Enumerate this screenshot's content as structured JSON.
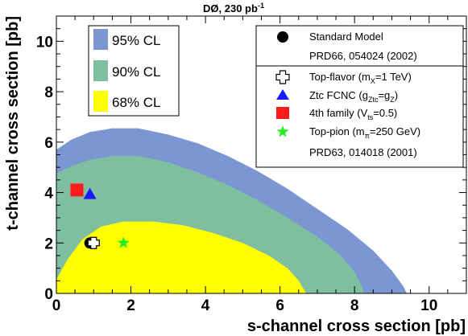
{
  "chart_data": {
    "type": "area",
    "title_main": "DØ, 230 pb",
    "title_sup": "-1",
    "xlabel": "s-channel cross section [pb]",
    "ylabel": "t-channel cross section [pb]",
    "xlim": [
      0,
      11
    ],
    "ylim": [
      0,
      11
    ],
    "xticks": [
      "0",
      "2",
      "4",
      "6",
      "8",
      "10"
    ],
    "yticks": [
      "0",
      "2",
      "4",
      "6",
      "8",
      "10"
    ],
    "colors": {
      "cl95": "#7b96d0",
      "cl90": "#7fbfa0",
      "cl68": "#ffff00",
      "sm": "#000000",
      "topflavor": "#ffffff",
      "ztc": "#1a1aff",
      "fourth": "#ff1a1a",
      "toppion": "#22ee22"
    },
    "regions": [
      {
        "name": "95% CL",
        "key": "cl95",
        "points": [
          [
            0,
            0
          ],
          [
            0,
            5.7
          ],
          [
            0.4,
            6.1
          ],
          [
            0.9,
            6.4
          ],
          [
            1.5,
            6.55
          ],
          [
            2.2,
            6.55
          ],
          [
            3.0,
            6.3
          ],
          [
            3.8,
            5.95
          ],
          [
            4.6,
            5.45
          ],
          [
            5.4,
            4.85
          ],
          [
            6.2,
            4.15
          ],
          [
            7.0,
            3.35
          ],
          [
            7.8,
            2.55
          ],
          [
            8.5,
            1.7
          ],
          [
            9.0,
            0.9
          ],
          [
            9.3,
            0.3
          ],
          [
            9.4,
            0
          ]
        ]
      },
      {
        "name": "90% CL",
        "key": "cl90",
        "points": [
          [
            0,
            0
          ],
          [
            0,
            4.75
          ],
          [
            0.4,
            5.05
          ],
          [
            0.9,
            5.3
          ],
          [
            1.5,
            5.45
          ],
          [
            2.2,
            5.45
          ],
          [
            3.0,
            5.2
          ],
          [
            3.8,
            4.8
          ],
          [
            4.6,
            4.3
          ],
          [
            5.4,
            3.7
          ],
          [
            6.2,
            3.0
          ],
          [
            7.0,
            2.25
          ],
          [
            7.6,
            1.55
          ],
          [
            8.0,
            0.85
          ],
          [
            8.2,
            0.3
          ],
          [
            8.25,
            0
          ]
        ]
      },
      {
        "name": "68% CL",
        "key": "cl68",
        "points": [
          [
            0,
            0
          ],
          [
            0,
            0.55
          ],
          [
            0.3,
            1.35
          ],
          [
            0.7,
            2.15
          ],
          [
            1.2,
            2.65
          ],
          [
            1.8,
            2.85
          ],
          [
            2.6,
            2.85
          ],
          [
            3.4,
            2.7
          ],
          [
            4.2,
            2.4
          ],
          [
            5.0,
            2.0
          ],
          [
            5.7,
            1.5
          ],
          [
            6.2,
            1.0
          ],
          [
            6.5,
            0.5
          ],
          [
            6.7,
            0
          ]
        ]
      }
    ],
    "markers": [
      {
        "name": "Standard Model",
        "shape": "circle",
        "key": "sm",
        "x": 0.9,
        "y": 2.0
      },
      {
        "name": "Top-flavor",
        "shape": "cross",
        "key": "topflavor",
        "x": 1.0,
        "y": 2.0
      },
      {
        "name": "Ztc FCNC",
        "shape": "triangle",
        "key": "ztc",
        "x": 0.9,
        "y": 3.9
      },
      {
        "name": "4th family",
        "shape": "square",
        "key": "fourth",
        "x": 0.55,
        "y": 4.1
      },
      {
        "name": "Top-pion",
        "shape": "star",
        "key": "toppion",
        "x": 1.8,
        "y": 2.0
      }
    ],
    "legend_cl": [
      "95% CL",
      "90% CL",
      "68% CL"
    ],
    "legend_models": {
      "sm": "Standard Model",
      "sm_ref": "PRD66, 054024 (2002)",
      "topflavor": "Top-flavor  (m",
      "topflavor_sub": "X",
      "topflavor_tail": "=1 TeV)",
      "ztc": "Ztc FCNC  (g",
      "ztc_sub": "Ztc",
      "ztc_mid": "=g",
      "ztc_sub2": "Z",
      "ztc_tail": ")",
      "fourth": "4th family  (V",
      "fourth_sub": "ts",
      "fourth_tail": "=0.5)",
      "toppion": "Top-pion  (m",
      "toppion_sub": "π",
      "toppion_tail": "=250 GeV)",
      "bsm_ref": "PRD63, 014018 (2001)"
    }
  }
}
